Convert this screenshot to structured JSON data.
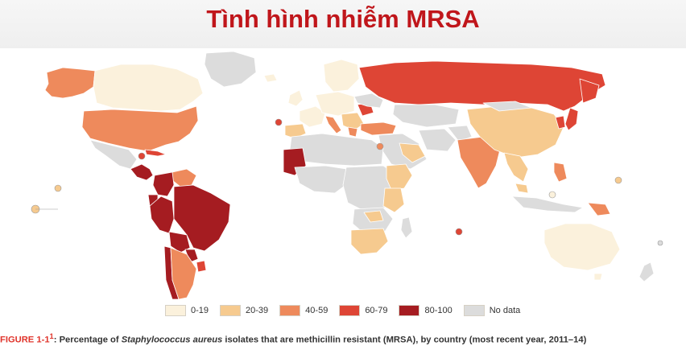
{
  "title": "Tình hình nhiễm MRSA",
  "colors": {
    "c0_19": "#fbf1dc",
    "c20_39": "#f6ca8f",
    "c40_59": "#ee8a5c",
    "c60_79": "#de4535",
    "c80_100": "#a51c21",
    "no_data": "#dcdcdc"
  },
  "legend": [
    {
      "label": "0-19",
      "color": "#fbf1dc"
    },
    {
      "label": "20-39",
      "color": "#f6ca8f"
    },
    {
      "label": "40-59",
      "color": "#ee8a5c"
    },
    {
      "label": "60-79",
      "color": "#de4535"
    },
    {
      "label": "80-100",
      "color": "#a51c21"
    },
    {
      "label": "No data",
      "color": "#dcdcdc"
    }
  ],
  "caption": {
    "figure": "FIGURE 1-1",
    "sup": "1",
    "colon": ":",
    "pre": " Percentage of ",
    "species": "Staphylococcus aureus",
    "post": " isolates that are methicillin resistant (MRSA), by country (most recent year, 2011–14)"
  }
}
